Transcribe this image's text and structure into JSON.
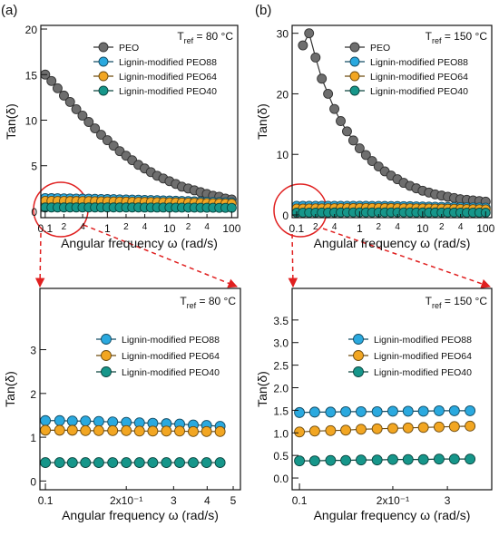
{
  "chart_data": [
    {
      "type": "line",
      "panel_label": "(a)",
      "xlabel": "Angular frequency ω (rad/s)",
      "ylabel": "Tan(δ)",
      "annotation": {
        "main": "T",
        "sub": "ref",
        "rest": " = 80 °C"
      },
      "xscale": "log",
      "xlim": [
        0.085,
        125
      ],
      "ylim": [
        -0.7,
        20.4
      ],
      "xticks": [
        0.1,
        {
          "value": 0.2,
          "label": "2"
        },
        {
          "value": 0.4,
          "label": "4"
        },
        1,
        2,
        4,
        10,
        {
          "value": 20,
          "label": "2"
        },
        {
          "value": 40,
          "label": "4"
        },
        100
      ],
      "yticks": [
        0,
        5,
        10,
        15,
        20
      ],
      "legend": "upper right",
      "x": [
        0.1,
        0.126,
        0.158,
        0.2,
        0.251,
        0.316,
        0.398,
        0.501,
        0.631,
        0.794,
        1,
        1.26,
        1.58,
        2,
        2.51,
        3.16,
        3.98,
        5.01,
        6.31,
        7.94,
        10,
        12.6,
        15.8,
        20,
        25.1,
        31.6,
        39.8,
        50.1,
        63.1,
        79.4,
        100
      ],
      "series": [
        {
          "name": "PEO",
          "color": "#6e6e6e",
          "values": [
            15,
            14.3,
            13.5,
            12.7,
            12,
            11.2,
            10.5,
            9.8,
            9.1,
            8.4,
            7.8,
            7.2,
            6.6,
            6.1,
            5.6,
            5.1,
            4.7,
            4.3,
            3.9,
            3.6,
            3.3,
            3,
            2.7,
            2.5,
            2.3,
            2.1,
            1.9,
            1.7,
            1.6,
            1.4,
            1.3
          ]
        },
        {
          "name": "Lignin-modified PEO88",
          "color": "#2aa9df",
          "values": [
            1.45,
            1.44,
            1.43,
            1.42,
            1.41,
            1.4,
            1.39,
            1.38,
            1.37,
            1.35,
            1.34,
            1.33,
            1.31,
            1.3,
            1.28,
            1.27,
            1.25,
            1.23,
            1.22,
            1.2,
            1.18,
            1.16,
            1.14,
            1.12,
            1.1,
            1.08,
            1.06,
            1.04,
            1.02,
            1,
            0.98
          ]
        },
        {
          "name": "Lignin-modified PEO64",
          "color": "#f2a622",
          "values": [
            1.15,
            1.15,
            1.14,
            1.14,
            1.13,
            1.13,
            1.12,
            1.12,
            1.11,
            1.1,
            1.09,
            1.08,
            1.07,
            1.06,
            1.05,
            1.04,
            1.03,
            1.02,
            1.01,
            1,
            0.99,
            0.98,
            0.96,
            0.95,
            0.94,
            0.92,
            0.91,
            0.89,
            0.88,
            0.86,
            0.85
          ]
        },
        {
          "name": "Lignin-modified PEO40",
          "color": "#16968a",
          "values": [
            0.42,
            0.42,
            0.42,
            0.42,
            0.42,
            0.42,
            0.42,
            0.42,
            0.42,
            0.42,
            0.42,
            0.42,
            0.42,
            0.42,
            0.42,
            0.42,
            0.41,
            0.41,
            0.41,
            0.41,
            0.41,
            0.4,
            0.4,
            0.4,
            0.4,
            0.39,
            0.39,
            0.39,
            0.38,
            0.38,
            0.38
          ]
        }
      ]
    },
    {
      "type": "line",
      "panel_label": "(b)",
      "xlabel": "Angular frequency ω (rad/s)",
      "ylabel": "Tan(δ)",
      "annotation": {
        "main": "T",
        "sub": "ref",
        "rest": " = 150 °C"
      },
      "xscale": "log",
      "xlim": [
        0.085,
        125
      ],
      "ylim": [
        -0.45,
        31.3
      ],
      "xticks": [
        0.1,
        {
          "value": 0.2,
          "label": "2"
        },
        {
          "value": 0.4,
          "label": "4"
        },
        1,
        2,
        4,
        10,
        {
          "value": 20,
          "label": "2"
        },
        {
          "value": 40,
          "label": "4"
        },
        100
      ],
      "yticks": [
        0,
        10,
        20,
        30
      ],
      "legend": "upper right",
      "x": [
        0.1,
        0.126,
        0.158,
        0.2,
        0.251,
        0.316,
        0.398,
        0.501,
        0.631,
        0.794,
        1,
        1.26,
        1.58,
        2,
        2.51,
        3.16,
        3.98,
        5.01,
        6.31,
        7.94,
        10,
        12.6,
        15.8,
        20,
        25.1,
        31.6,
        39.8,
        50.1,
        63.1,
        79.4,
        100
      ],
      "series": [
        {
          "name": "PEO",
          "color": "#6e6e6e",
          "values": [
            null,
            28,
            30,
            26,
            22.5,
            20,
            17.5,
            15.5,
            13.8,
            12.3,
            11,
            9.9,
            8.9,
            8,
            7.2,
            6.5,
            5.9,
            5.3,
            4.8,
            4.4,
            4,
            3.7,
            3.4,
            3.2,
            3,
            2.8,
            2.6,
            2.5,
            2.4,
            2.3,
            2.2
          ]
        },
        {
          "name": "Lignin-modified PEO88",
          "color": "#2aa9df",
          "values": [
            1.5,
            1.5,
            1.5,
            1.5,
            1.5,
            1.5,
            1.5,
            1.5,
            1.5,
            1.5,
            1.5,
            1.5,
            1.49,
            1.49,
            1.48,
            1.47,
            1.46,
            1.45,
            1.44,
            1.42,
            1.4,
            1.38,
            1.36,
            1.34,
            1.32,
            1.3,
            1.28,
            1.26,
            1.24,
            1.22,
            1.2
          ]
        },
        {
          "name": "Lignin-modified PEO64",
          "color": "#f2a622",
          "values": [
            1.05,
            1.06,
            1.08,
            1.09,
            1.1,
            1.11,
            1.12,
            1.13,
            1.14,
            1.14,
            1.15,
            1.15,
            1.15,
            1.15,
            1.14,
            1.14,
            1.13,
            1.12,
            1.11,
            1.1,
            1.09,
            1.08,
            1.06,
            1.05,
            1.03,
            1.02,
            1,
            0.98,
            0.96,
            0.94,
            0.92
          ]
        },
        {
          "name": "Lignin-modified PEO40",
          "color": "#16968a",
          "values": [
            0.38,
            0.38,
            0.39,
            0.39,
            0.4,
            0.4,
            0.41,
            0.41,
            0.42,
            0.42,
            0.42,
            0.42,
            0.42,
            0.42,
            0.42,
            0.42,
            0.42,
            0.42,
            0.42,
            0.41,
            0.41,
            0.41,
            0.41,
            0.4,
            0.4,
            0.4,
            0.39,
            0.39,
            0.39,
            0.38,
            0.38
          ]
        }
      ]
    },
    {
      "type": "line",
      "xlabel": "Angular frequency ω (rad/s)",
      "ylabel": "Tan(δ)",
      "annotation": {
        "main": "T",
        "sub": "ref",
        "rest": " = 80 °C"
      },
      "xscale": "log",
      "xlim": [
        0.0954,
        0.532
      ],
      "ylim": [
        -0.2,
        4.4
      ],
      "xticks": [
        0.1,
        {
          "value": 0.2,
          "label": "2x10⁻¹"
        },
        {
          "value": 0.3,
          "label": "3"
        },
        {
          "value": 0.4,
          "label": "4"
        },
        {
          "value": 0.5,
          "label": "5"
        }
      ],
      "yticks": [
        0,
        1,
        2,
        3
      ],
      "legend": "upper right",
      "x": [
        0.1,
        0.113,
        0.126,
        0.141,
        0.158,
        0.178,
        0.2,
        0.224,
        0.251,
        0.282,
        0.316,
        0.355,
        0.398,
        0.447
      ],
      "series": [
        {
          "name": "Lignin-modified PEO88",
          "color": "#2aa9df",
          "values": [
            1.38,
            1.38,
            1.37,
            1.37,
            1.36,
            1.35,
            1.34,
            1.33,
            1.32,
            1.31,
            1.3,
            1.28,
            1.27,
            1.25
          ]
        },
        {
          "name": "Lignin-modified PEO64",
          "color": "#f2a622",
          "values": [
            1.16,
            1.16,
            1.16,
            1.15,
            1.15,
            1.15,
            1.15,
            1.14,
            1.14,
            1.14,
            1.14,
            1.13,
            1.13,
            1.13
          ]
        },
        {
          "name": "Lignin-modified PEO40",
          "color": "#16968a",
          "values": [
            0.42,
            0.42,
            0.42,
            0.42,
            0.42,
            0.42,
            0.42,
            0.42,
            0.42,
            0.42,
            0.42,
            0.42,
            0.42,
            0.42
          ]
        }
      ]
    },
    {
      "type": "line",
      "xlabel": "Angular frequency ω (rad/s)",
      "ylabel": "Tan(δ)",
      "annotation": {
        "main": "T",
        "sub": "ref",
        "rest": " = 150 °C"
      },
      "xscale": "log",
      "xlim": [
        0.0947,
        0.417
      ],
      "ylim": [
        -0.26,
        4.2
      ],
      "xticks": [
        0.1,
        {
          "value": 0.2,
          "label": "2x10⁻¹"
        },
        {
          "value": 0.3,
          "label": "3"
        }
      ],
      "yticks": [
        {
          "value": 0,
          "label": "0.0"
        },
        0.5,
        {
          "value": 1,
          "label": "1.0"
        },
        1.5,
        {
          "value": 2,
          "label": "2.0"
        },
        2.5,
        {
          "value": 3,
          "label": "3.0"
        },
        3.5
      ],
      "legend": "upper right",
      "x": [
        0.1,
        0.112,
        0.126,
        0.141,
        0.158,
        0.178,
        0.2,
        0.224,
        0.251,
        0.282,
        0.316,
        0.355
      ],
      "series": [
        {
          "name": "Lignin-modified PEO88",
          "color": "#2aa9df",
          "values": [
            1.45,
            1.46,
            1.46,
            1.47,
            1.47,
            1.47,
            1.48,
            1.48,
            1.48,
            1.49,
            1.49,
            1.49
          ]
        },
        {
          "name": "Lignin-modified PEO64",
          "color": "#f2a622",
          "values": [
            1.02,
            1.04,
            1.05,
            1.06,
            1.08,
            1.09,
            1.1,
            1.11,
            1.12,
            1.13,
            1.14,
            1.15
          ]
        },
        {
          "name": "Lignin-modified PEO40",
          "color": "#16968a",
          "values": [
            0.38,
            0.38,
            0.39,
            0.39,
            0.4,
            0.4,
            0.41,
            0.41,
            0.41,
            0.42,
            0.42,
            0.42
          ]
        }
      ]
    }
  ]
}
